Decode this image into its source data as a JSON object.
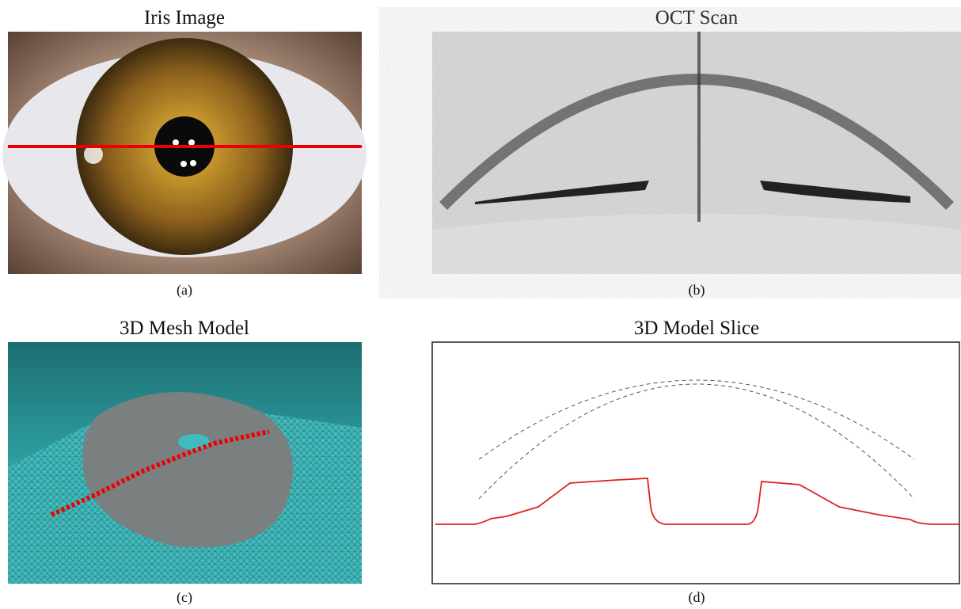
{
  "panels": [
    {
      "title": "Iris Image",
      "caption": "(a)"
    },
    {
      "title": "OCT Scan",
      "caption": "(b)"
    },
    {
      "title": "3D Mesh Model",
      "caption": "(c)"
    },
    {
      "title": "3D Model Slice",
      "caption": "(d)"
    }
  ]
}
